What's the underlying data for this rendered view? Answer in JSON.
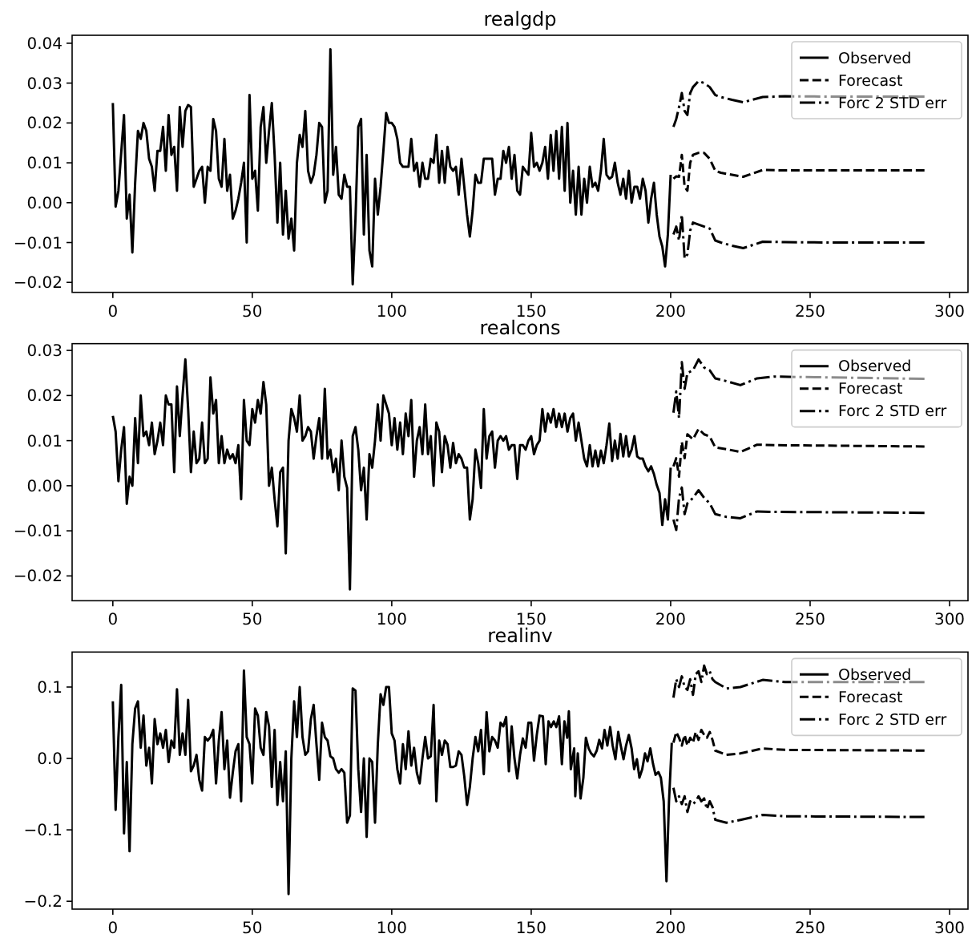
{
  "chart_data": [
    {
      "type": "line",
      "title": "realgdp",
      "legend": "top right",
      "xlim": [
        -14.6,
        306.6
      ],
      "xticks": [
        0,
        50,
        100,
        150,
        200,
        250,
        300
      ],
      "ylim": [
        -0.0225,
        0.042
      ],
      "yticks": [
        {
          "value": -0.02,
          "label": "−0.02"
        },
        {
          "value": -0.01,
          "label": "−0.01"
        },
        {
          "value": 0,
          "label": "0.00"
        },
        {
          "value": 0.01,
          "label": "0.01"
        },
        {
          "value": 0.02,
          "label": "0.02"
        },
        {
          "value": 0.03,
          "label": "0.03"
        },
        {
          "value": 0.04,
          "label": "0.04"
        }
      ],
      "series": [
        {
          "name": "Observed",
          "color": "#000000",
          "line_style": "solid",
          "x": [
            0,
            1,
            2,
            4,
            5,
            6,
            7,
            8,
            9,
            10,
            11,
            12,
            13,
            14,
            15,
            16,
            17,
            18,
            19,
            20,
            21,
            22,
            23,
            24,
            25,
            26,
            27,
            28,
            29,
            31,
            32,
            33,
            34,
            35,
            36,
            37,
            38,
            39,
            40,
            41,
            42,
            43,
            44,
            45,
            46,
            47,
            48,
            49,
            50,
            51,
            52,
            53,
            54,
            55,
            56,
            57,
            58,
            59,
            60,
            61,
            62,
            63,
            64,
            65,
            66,
            67,
            68,
            69,
            70,
            71,
            72,
            73,
            74,
            75,
            76,
            77,
            78,
            79,
            80,
            81,
            82,
            83,
            84,
            85,
            86,
            87,
            88,
            89,
            90,
            91,
            92,
            93,
            94,
            95,
            96,
            97,
            98,
            99,
            100,
            101,
            102,
            103,
            104,
            105,
            106,
            107,
            108,
            109,
            110,
            111,
            112,
            113,
            114,
            115,
            116,
            117,
            118,
            119,
            120,
            121,
            122,
            123,
            124,
            125,
            126,
            127,
            128,
            129,
            130,
            131,
            132,
            133,
            135,
            136,
            137,
            138,
            139,
            140,
            141,
            142,
            143,
            144,
            145,
            146,
            147,
            148,
            149,
            150,
            151,
            152,
            153,
            154,
            155,
            156,
            157,
            158,
            159,
            160,
            161,
            162,
            163,
            164,
            165,
            166,
            167,
            168,
            169,
            170,
            171,
            172,
            173,
            174,
            175,
            176,
            177,
            178,
            179,
            180,
            181,
            182,
            183,
            184,
            185,
            186,
            187,
            188,
            189,
            190,
            191,
            192,
            193,
            194,
            195,
            196,
            197,
            198,
            199,
            200
          ],
          "values": [
            0.025,
            -0.001,
            0.003,
            0.022,
            -0.004,
            0.002,
            -0.0125,
            0.005,
            0.018,
            0.016,
            0.02,
            0.018,
            0.011,
            0.009,
            0.003,
            0.013,
            0.013,
            0.019,
            0.008,
            0.022,
            0.012,
            0.014,
            0.003,
            0.024,
            0.014,
            0.023,
            0.0245,
            0.024,
            0.004,
            0.008,
            0.009,
            0,
            0.009,
            0.008,
            0.021,
            0.018,
            0.006,
            0.004,
            0.016,
            0.003,
            0.007,
            -0.004,
            -0.002,
            0.001,
            0.005,
            0.01,
            -0.01,
            0.027,
            0.006,
            0.008,
            -0.002,
            0.019,
            0.024,
            0.01,
            0.018,
            0.025,
            0.012,
            -0.005,
            0.01,
            -0.008,
            0.003,
            -0.009,
            -0.004,
            -0.012,
            0.01,
            0.017,
            0.014,
            0.023,
            0.008,
            0.005,
            0.007,
            0.012,
            0.02,
            0.019,
            0,
            0.003,
            0.0385,
            0.007,
            0.014,
            0.002,
            0.001,
            0.007,
            0.004,
            0.004,
            -0.0205,
            -0.004,
            0.019,
            0.021,
            -0.008,
            0.012,
            -0.012,
            -0.016,
            0.006,
            -0.003,
            0.004,
            0.013,
            0.0225,
            0.02,
            0.02,
            0.019,
            0.016,
            0.01,
            0.009,
            0.009,
            0.009,
            0.016,
            0.008,
            0.01,
            0.004,
            0.01,
            0.006,
            0.006,
            0.011,
            0.01,
            0.017,
            0.005,
            0.013,
            0.005,
            0.014,
            0.009,
            0.008,
            0.009,
            0.002,
            0.011,
            0.004,
            -0.003,
            -0.0085,
            -0.002,
            0.007,
            0.005,
            0.005,
            0.011,
            0.011,
            0.011,
            0.002,
            0.006,
            0.006,
            0.013,
            0.01,
            0.014,
            0.006,
            0.012,
            0.003,
            0.002,
            0.009,
            0.008,
            0.007,
            0.0175,
            0.009,
            0.01,
            0.008,
            0.01,
            0.014,
            0.006,
            0.017,
            0.008,
            0.018,
            0.006,
            0.019,
            0.003,
            0.02,
            0,
            0.008,
            -0.003,
            0.009,
            -0.003,
            0.006,
            0,
            0.009,
            0.004,
            0.005,
            0.003,
            0.008,
            0.016,
            0.007,
            0.006,
            0.0065,
            0.01,
            0.005,
            0.002,
            0.006,
            0.001,
            0.008,
            0,
            0.004,
            0.004,
            0.001,
            0.006,
            0.003,
            -0.005,
            0.001,
            0.005,
            -0.003,
            -0.0085,
            -0.011,
            -0.016,
            -0.008,
            0.007
          ]
        },
        {
          "name": "Forecast",
          "color": "#000000",
          "line_style": "dashed",
          "x": [
            201,
            202,
            203,
            204,
            205,
            206,
            207,
            208,
            210,
            212,
            214,
            216,
            218,
            222,
            226,
            233,
            241,
            260,
            291
          ],
          "values": [
            0.006,
            0.0066,
            0.0065,
            0.012,
            0.004,
            0.003,
            0.01,
            0.012,
            0.0125,
            0.0125,
            0.011,
            0.008,
            0.0075,
            0.007,
            0.0065,
            0.0082,
            0.0081,
            0.0081,
            0.0081
          ]
        },
        {
          "name": "Forc 2 STD err",
          "color": "#000000",
          "line_style": "dashdot",
          "x": [
            201,
            202,
            203,
            204,
            205,
            206,
            207,
            208,
            210,
            212,
            214,
            216,
            218,
            222,
            226,
            233,
            241,
            260,
            291
          ],
          "values": [
            0.019,
            0.021,
            0.024,
            0.0275,
            0.023,
            0.022,
            0.0275,
            0.029,
            0.0305,
            0.03,
            0.029,
            0.027,
            0.0265,
            0.0258,
            0.0252,
            0.0265,
            0.0267,
            0.0266,
            0.0266
          ]
        },
        {
          "color": "#000000",
          "line_style": "dashdot",
          "x": [
            201,
            202,
            203,
            204,
            205,
            206,
            207,
            208,
            210,
            212,
            214,
            216,
            218,
            222,
            226,
            233,
            241,
            260,
            291
          ],
          "values": [
            -0.008,
            -0.006,
            -0.0095,
            -0.003,
            -0.014,
            -0.013,
            -0.007,
            -0.005,
            -0.0055,
            -0.006,
            -0.0065,
            -0.0095,
            -0.01,
            -0.0108,
            -0.0114,
            -0.0098,
            -0.0099,
            -0.01,
            -0.01
          ]
        }
      ]
    },
    {
      "type": "line",
      "title": "realcons",
      "legend": "top right",
      "xlim": [
        -14.6,
        306.6
      ],
      "xticks": [
        0,
        50,
        100,
        150,
        200,
        250,
        300
      ],
      "ylim": [
        -0.0255,
        0.0315
      ],
      "yticks": [
        {
          "value": -0.02,
          "label": "−0.02"
        },
        {
          "value": -0.01,
          "label": "−0.01"
        },
        {
          "value": 0,
          "label": "0.00"
        },
        {
          "value": 0.01,
          "label": "0.01"
        },
        {
          "value": 0.02,
          "label": "0.02"
        },
        {
          "value": 0.03,
          "label": "0.03"
        }
      ],
      "series": [
        {
          "name": "Observed",
          "color": "#000000",
          "line_style": "solid",
          "x": [
            0,
            1,
            2,
            3,
            4,
            5,
            6,
            7,
            8,
            9,
            10,
            11,
            12,
            13,
            14,
            15,
            16,
            17,
            18,
            19,
            20,
            21,
            22,
            23,
            24,
            25,
            26,
            27,
            28,
            29,
            30,
            31,
            32,
            33,
            34,
            35,
            36,
            37,
            38,
            39,
            40,
            41,
            42,
            43,
            44,
            45,
            46,
            47,
            48,
            49,
            50,
            51,
            52,
            53,
            54,
            55,
            56,
            57,
            58,
            59,
            60,
            61,
            62,
            63,
            64,
            65,
            66,
            67,
            68,
            69,
            70,
            71,
            72,
            73,
            74,
            75,
            76,
            77,
            78,
            79,
            80,
            81,
            82,
            83,
            84,
            85,
            86,
            87,
            88,
            89,
            90,
            91,
            92,
            93,
            94,
            95,
            96,
            97,
            98,
            99,
            100,
            101,
            102,
            103,
            104,
            105,
            106,
            107,
            108,
            109,
            110,
            111,
            112,
            113,
            114,
            115,
            116,
            117,
            118,
            119,
            120,
            121,
            122,
            123,
            124,
            125,
            126,
            127,
            128,
            129,
            130,
            131,
            132,
            133,
            134,
            135,
            136,
            137,
            138,
            139,
            140,
            141,
            142,
            143,
            144,
            145,
            146,
            147,
            148,
            149,
            150,
            151,
            152,
            153,
            154,
            155,
            156,
            157,
            158,
            159,
            160,
            161,
            162,
            163,
            164,
            165,
            166,
            167,
            168,
            169,
            170,
            171,
            172,
            173,
            174,
            175,
            176,
            177,
            178,
            179,
            180,
            181,
            182,
            183,
            184,
            185,
            186,
            187,
            188,
            189,
            190,
            191,
            192,
            193,
            194,
            195,
            196,
            197,
            198,
            199,
            200
          ],
          "values": [
            0.0155,
            0.012,
            0.001,
            0.008,
            0.013,
            -0.004,
            0.002,
            0,
            0.015,
            0.005,
            0.02,
            0.011,
            0.012,
            0.009,
            0.014,
            0.007,
            0.01,
            0.014,
            0.009,
            0.02,
            0.018,
            0.018,
            0.003,
            0.022,
            0.011,
            0.02,
            0.028,
            0.017,
            0.003,
            0.012,
            0.005,
            0.006,
            0.014,
            0.005,
            0.006,
            0.024,
            0.016,
            0.019,
            0.005,
            0.011,
            0.005,
            0.008,
            0.006,
            0.007,
            0.005,
            0.009,
            -0.003,
            0.019,
            0.01,
            0.009,
            0.017,
            0.014,
            0.019,
            0.016,
            0.023,
            0.018,
            0,
            0.004,
            -0.003,
            -0.009,
            0.003,
            0.004,
            -0.015,
            0.01,
            0.017,
            0.015,
            0.012,
            0.02,
            0.01,
            0.011,
            0.013,
            0.012,
            0.006,
            0.011,
            0.015,
            0.006,
            0.0215,
            0.006,
            0.008,
            0.003,
            0.006,
            -0.001,
            0.01,
            0.002,
            -0.0005,
            -0.023,
            0.011,
            0.013,
            0.008,
            -0.001,
            0.004,
            -0.0075,
            0.007,
            0.004,
            0.01,
            0.018,
            0.01,
            0.02,
            0.018,
            0.016,
            0.009,
            0.015,
            0.008,
            0.014,
            0.007,
            0.016,
            0.011,
            0.019,
            0.002,
            0.01,
            0.013,
            0.007,
            0.018,
            0.007,
            0.011,
            0,
            0.014,
            0.012,
            0.003,
            0.011,
            0.009,
            0.004,
            0.0095,
            0.005,
            0.007,
            0.006,
            0.004,
            0.004,
            -0.0075,
            -0.003,
            0.008,
            0.005,
            -0.0005,
            0.017,
            0.006,
            0.011,
            0.012,
            0.004,
            0.01,
            0.011,
            0.01,
            0.011,
            0.008,
            0.009,
            0.009,
            0.0015,
            0.009,
            0.009,
            0.008,
            0.01,
            0.011,
            0.007,
            0.009,
            0.01,
            0.017,
            0.012,
            0.016,
            0.014,
            0.017,
            0.013,
            0.016,
            0.013,
            0.016,
            0.012,
            0.015,
            0.016,
            0.01,
            0.014,
            0.01,
            0.006,
            0.0043,
            0.009,
            0.0043,
            0.0078,
            0.0043,
            0.0078,
            0.005,
            0.009,
            0.0138,
            0.0055,
            0.01,
            0.006,
            0.0115,
            0.0065,
            0.011,
            0.0065,
            0.008,
            0.011,
            0.0065,
            0.006,
            0.006,
            0.0043,
            0.0032,
            0.0043,
            0.0026,
            0.0002,
            -0.0016,
            -0.0087,
            -0.003,
            -0.0075,
            0.004
          ]
        },
        {
          "name": "Forecast",
          "color": "#000000",
          "line_style": "dashed",
          "x": [
            201,
            202,
            203,
            204,
            205,
            206,
            208,
            210,
            212,
            214,
            216,
            220,
            225,
            231,
            237,
            291
          ],
          "values": [
            0.0043,
            0.0061,
            0.002,
            0.0097,
            0.0061,
            0.0114,
            0.0103,
            0.0126,
            0.0114,
            0.0109,
            0.0085,
            0.0081,
            0.0075,
            0.0091,
            0.009,
            0.0087
          ]
        },
        {
          "name": "Forc 2 STD err",
          "color": "#000000",
          "line_style": "dashdot",
          "x": [
            201,
            202,
            203,
            204,
            205,
            206,
            208,
            210,
            212,
            214,
            216,
            220,
            225,
            231,
            237,
            291
          ],
          "values": [
            0.0162,
            0.0209,
            0.015,
            0.0274,
            0.0215,
            0.025,
            0.0256,
            0.028,
            0.0262,
            0.0256,
            0.0238,
            0.0232,
            0.0223,
            0.0238,
            0.0242,
            0.0237
          ]
        },
        {
          "color": "#000000",
          "line_style": "dashdot",
          "x": [
            201,
            202,
            203,
            204,
            205,
            206,
            208,
            210,
            212,
            214,
            216,
            220,
            225,
            231,
            237,
            291
          ],
          "values": [
            -0.0075,
            -0.0098,
            -0.0027,
            -0.0004,
            -0.0063,
            -0.0039,
            -0.0027,
            -0.001,
            -0.0027,
            -0.0039,
            -0.0063,
            -0.0069,
            -0.0072,
            -0.0057,
            -0.0058,
            -0.006
          ]
        }
      ]
    },
    {
      "type": "line",
      "title": "realinv",
      "legend": "top right",
      "xlim": [
        -14.6,
        306.6
      ],
      "xticks": [
        0,
        50,
        100,
        150,
        200,
        250,
        300
      ],
      "ylim": [
        -0.211,
        0.149
      ],
      "yticks": [
        {
          "value": -0.2,
          "label": "−0.2"
        },
        {
          "value": -0.1,
          "label": "−0.1"
        },
        {
          "value": 0,
          "label": "0.0"
        },
        {
          "value": 0.1,
          "label": "0.1"
        }
      ],
      "series": [
        {
          "name": "Observed",
          "color": "#000000",
          "line_style": "solid",
          "x": [
            0,
            1,
            2,
            3,
            4,
            5,
            6,
            7,
            8,
            9,
            10,
            11,
            12,
            13,
            14,
            15,
            16,
            17,
            18,
            19,
            20,
            21,
            22,
            23,
            24,
            25,
            26,
            27,
            28,
            29,
            30,
            31,
            32,
            33,
            34,
            35,
            36,
            37,
            38,
            39,
            40,
            41,
            42,
            43,
            44,
            45,
            46,
            47,
            48,
            49,
            50,
            51,
            52,
            53,
            54,
            55,
            56,
            57,
            58,
            59,
            60,
            61,
            62,
            63,
            64,
            65,
            66,
            67,
            68,
            69,
            70,
            71,
            72,
            73,
            74,
            75,
            76,
            77,
            78,
            79,
            80,
            81,
            82,
            83,
            84,
            85,
            86,
            87,
            88,
            89,
            90,
            91,
            92,
            93,
            94,
            95,
            96,
            97,
            98,
            99,
            100,
            101,
            102,
            103,
            104,
            105,
            106,
            107,
            108,
            109,
            110,
            111,
            112,
            113,
            114,
            115,
            116,
            117,
            118,
            119,
            120,
            121,
            122,
            123,
            124,
            125,
            126,
            127,
            128,
            129,
            130,
            131,
            132,
            133,
            134,
            135,
            136,
            137,
            138,
            139,
            140,
            141,
            142,
            143,
            144,
            145,
            146,
            147,
            148,
            149,
            150,
            151,
            152,
            153,
            154.2,
            155.2,
            156.2,
            157.1,
            158.1,
            159,
            160,
            161,
            161.9,
            162.9,
            163.5,
            164.2,
            165.4,
            165.8,
            166.7,
            167.7,
            168.7,
            169.6,
            170.6,
            171.5,
            172.5,
            173.5,
            174.4,
            175.4,
            176.3,
            177.3,
            178.3,
            179.2,
            180.2,
            181.2,
            182.1,
            183.1,
            184,
            185,
            186,
            186.9,
            187.9,
            188.8,
            189.8,
            190.8,
            191.7,
            192.7,
            193.7,
            194.6,
            195.6,
            196.5,
            197.5,
            198.5,
            199.4,
            200.4
          ],
          "values": [
            0.08,
            -0.072,
            0.03,
            0.103,
            -0.105,
            -0.005,
            -0.13,
            0.02,
            0.07,
            0.08,
            0.015,
            0.06,
            -0.01,
            0.015,
            -0.035,
            0.055,
            0.02,
            0.035,
            0.015,
            0.04,
            -0.005,
            0.025,
            0.015,
            0.097,
            0.005,
            0.035,
            0.005,
            0.082,
            -0.018,
            -0.01,
            0.005,
            -0.03,
            -0.045,
            0.03,
            0.025,
            0.03,
            0.04,
            -0.035,
            0.025,
            0.065,
            -0.015,
            0.025,
            -0.055,
            -0.02,
            0.01,
            0.02,
            -0.06,
            0.123,
            0.03,
            0.02,
            -0.035,
            0.07,
            0.06,
            0.015,
            0.005,
            0.065,
            0.045,
            -0.04,
            0.04,
            -0.065,
            -0.005,
            -0.06,
            0.01,
            -0.19,
            0,
            0.08,
            0.03,
            0.1,
            0.03,
            0.005,
            0.01,
            0.055,
            0.075,
            0.02,
            -0.03,
            0.05,
            0.03,
            0.025,
            0.003,
            0,
            -0.015,
            -0.02,
            -0.015,
            -0.02,
            -0.09,
            -0.08,
            0.098,
            0.095,
            -0.015,
            -0.075,
            0,
            -0.11,
            0,
            -0.005,
            -0.09,
            0.02,
            0.09,
            0.075,
            0.1,
            0.1,
            0.035,
            0.025,
            -0.015,
            -0.035,
            0.02,
            -0.015,
            0.038,
            -0.01,
            0.015,
            -0.02,
            -0.035,
            0,
            0.03,
            0,
            0.003,
            0.075,
            -0.06,
            0.025,
            0.005,
            0.025,
            0.02,
            -0.012,
            -0.012,
            -0.01,
            0.01,
            0.005,
            -0.025,
            -0.065,
            -0.04,
            0,
            0.03,
            0.01,
            0.04,
            -0.022,
            0.065,
            0.01,
            0.03,
            0.025,
            0.015,
            0.05,
            0.045,
            0.058,
            -0.018,
            0.045,
            0,
            -0.028,
            0.005,
            0.028,
            0.015,
            0.05,
            0.05,
            -0.003,
            0.033,
            0.06,
            0.059,
            -0.008,
            0.052,
            0.044,
            0.052,
            0.044,
            0.059,
            -0.008,
            0.052,
            0.029,
            0.066,
            -0.015,
            0.014,
            -0.053,
            0.007,
            -0.056,
            -0.027,
            0.029,
            0.014,
            0.007,
            0.003,
            0.011,
            0.026,
            0.014,
            0.04,
            0.018,
            0.044,
            0.018,
            -0.001,
            0.037,
            0.018,
            -0.001,
            0.018,
            0.033,
            0.014,
            -0.015,
            -0.001,
            -0.027,
            -0.015,
            0.007,
            -0.004,
            0.014,
            -0.008,
            -0.023,
            -0.019,
            -0.027,
            -0.06,
            -0.172,
            -0.06,
            0.022
          ]
        },
        {
          "name": "Forecast",
          "color": "#000000",
          "line_style": "dashed",
          "x": [
            201,
            202,
            203,
            204,
            205,
            206,
            207,
            208,
            209,
            210,
            211,
            212,
            213,
            214,
            215,
            216,
            220,
            225,
            233,
            241,
            291
          ],
          "values": [
            0.022,
            0.037,
            0.029,
            0.018,
            0.033,
            0.018,
            0.029,
            0.022,
            0.037,
            0.026,
            0.04,
            0.033,
            0.029,
            0.037,
            0.026,
            0.011,
            0.005,
            0.007,
            0.014,
            0.012,
            0.011
          ]
        },
        {
          "name": "Forc 2 STD err",
          "color": "#000000",
          "line_style": "dashdot",
          "x": [
            201,
            202,
            203,
            204,
            205,
            206,
            207,
            208,
            209,
            210,
            211,
            212,
            213,
            214,
            215,
            216,
            220,
            225,
            233,
            241,
            291
          ],
          "values": [
            0.085,
            0.111,
            0.1,
            0.115,
            0.1,
            0.096,
            0.111,
            0.089,
            0.118,
            0.122,
            0.107,
            0.13,
            0.118,
            0.122,
            0.111,
            0.107,
            0.098,
            0.1,
            0.11,
            0.107,
            0.107
          ]
        },
        {
          "color": "#000000",
          "line_style": "dashdot",
          "x": [
            201,
            202,
            203,
            204,
            205,
            206,
            207,
            208,
            209,
            210,
            211,
            212,
            213,
            214,
            215,
            216,
            220,
            225,
            233,
            241,
            291
          ],
          "values": [
            -0.041,
            -0.06,
            -0.053,
            -0.064,
            -0.053,
            -0.075,
            -0.06,
            -0.064,
            -0.06,
            -0.053,
            -0.06,
            -0.056,
            -0.071,
            -0.06,
            -0.068,
            -0.086,
            -0.09,
            -0.086,
            -0.079,
            -0.081,
            -0.082
          ]
        }
      ]
    }
  ]
}
